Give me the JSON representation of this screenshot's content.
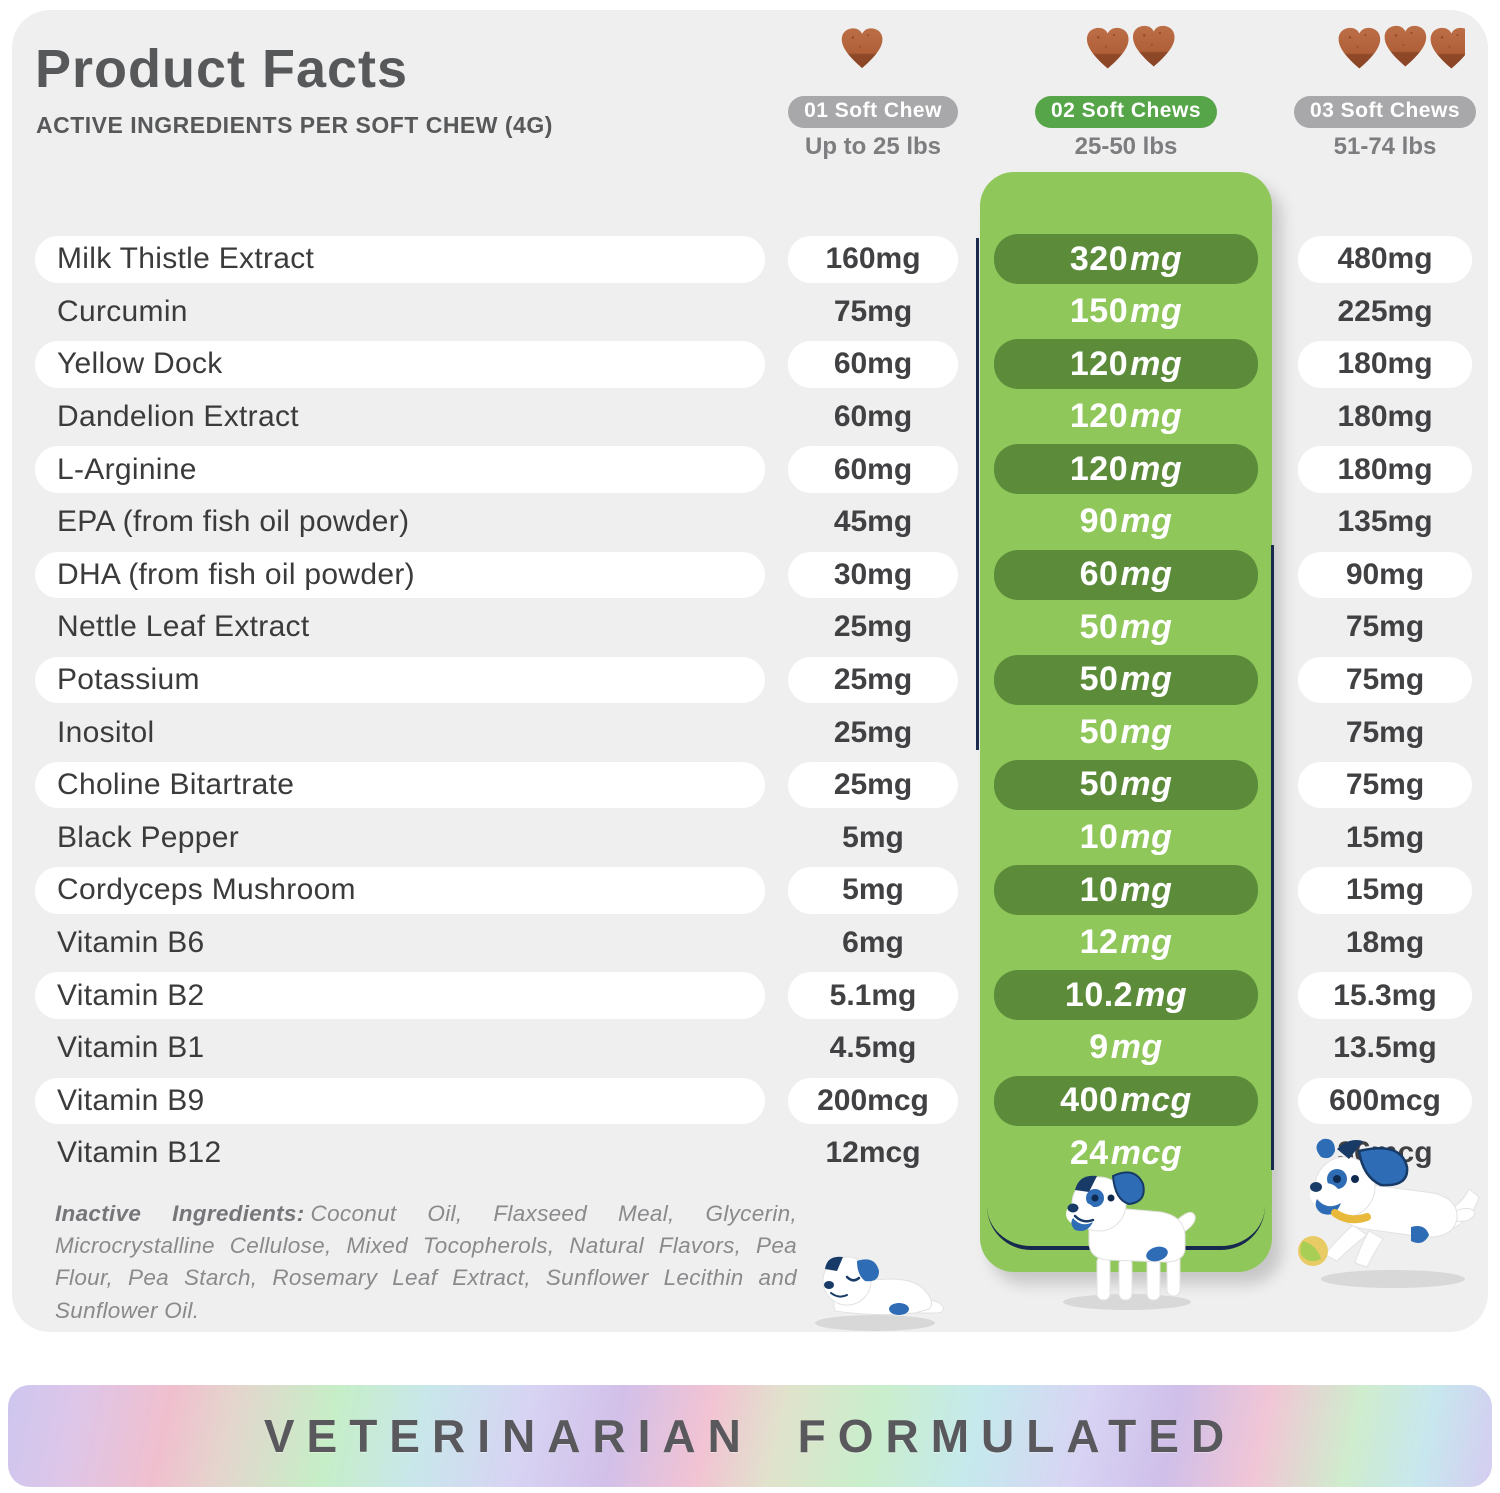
{
  "header": {
    "title": "Product Facts",
    "subtitle": "ACTIVE INGREDIENTS PER SOFT CHEW (4G)"
  },
  "dose_columns": [
    {
      "label": "01 Soft Chew",
      "weight": "Up to 25 lbs",
      "chew_count": 1,
      "pill_color": "#a8a8aa",
      "highlight": false
    },
    {
      "label": "02 Soft Chews",
      "weight": "25-50 lbs",
      "chew_count": 2,
      "pill_color": "#56a548",
      "highlight": true
    },
    {
      "label": "03 Soft Chews",
      "weight": "51-74 lbs",
      "chew_count": 3,
      "pill_color": "#a8a8aa",
      "highlight": false
    }
  ],
  "table": {
    "rows": [
      {
        "ingredient": "Milk Thistle Extract",
        "values": [
          "160mg",
          "320mg",
          "480mg"
        ]
      },
      {
        "ingredient": "Curcumin",
        "values": [
          "75mg",
          "150mg",
          "225mg"
        ]
      },
      {
        "ingredient": "Yellow Dock",
        "values": [
          "60mg",
          "120mg",
          "180mg"
        ]
      },
      {
        "ingredient": "Dandelion Extract",
        "values": [
          "60mg",
          "120mg",
          "180mg"
        ]
      },
      {
        "ingredient": "L-Arginine",
        "values": [
          "60mg",
          "120mg",
          "180mg"
        ]
      },
      {
        "ingredient": "EPA (from fish oil powder)",
        "values": [
          "45mg",
          "90mg",
          "135mg"
        ]
      },
      {
        "ingredient": "DHA (from fish oil powder)",
        "values": [
          "30mg",
          "60mg",
          "90mg"
        ]
      },
      {
        "ingredient": "Nettle Leaf Extract",
        "values": [
          "25mg",
          "50mg",
          "75mg"
        ]
      },
      {
        "ingredient": "Potassium",
        "values": [
          "25mg",
          "50mg",
          "75mg"
        ]
      },
      {
        "ingredient": "Inositol",
        "values": [
          "25mg",
          "50mg",
          "75mg"
        ]
      },
      {
        "ingredient": "Choline Bitartrate",
        "values": [
          "25mg",
          "50mg",
          "75mg"
        ]
      },
      {
        "ingredient": "Black Pepper",
        "values": [
          "5mg",
          "10mg",
          "15mg"
        ]
      },
      {
        "ingredient": "Cordyceps Mushroom",
        "values": [
          "5mg",
          "10mg",
          "15mg"
        ]
      },
      {
        "ingredient": "Vitamin B6",
        "values": [
          "6mg",
          "12mg",
          "18mg"
        ]
      },
      {
        "ingredient": "Vitamin B2",
        "values": [
          "5.1mg",
          "10.2mg",
          "15.3mg"
        ]
      },
      {
        "ingredient": "Vitamin B1",
        "values": [
          "4.5mg",
          "9mg",
          "13.5mg"
        ]
      },
      {
        "ingredient": "Vitamin B9",
        "values": [
          "200mcg",
          "400mcg",
          "600mcg"
        ]
      },
      {
        "ingredient": "Vitamin B12",
        "values": [
          "12mcg",
          "24mcg",
          "36mcg"
        ]
      }
    ]
  },
  "inactive": {
    "label": "Inactive Ingredients:",
    "text": "Coconut Oil, Flaxseed Meal, Glycerin, Microcrystalline Cellulose, Mixed Tocopherols, Natural Flavors, Pea Flour, Pea Starch, Rosemary Leaf Extract, Sunflower Lecithin and Sunflower Oil."
  },
  "footer": {
    "banner_text": "VETERINARIAN FORMULATED"
  },
  "colors": {
    "panel": "#efefef",
    "highlight_light_green": "#90c75b",
    "highlight_dark_green": "#5c8c3a",
    "accent_green_pill": "#56a548",
    "gray_pill": "#a8a8aa",
    "navy_outline": "#1b2b4d",
    "chew_brown": "#b5663e",
    "chew_brown_dark": "#8f4928"
  }
}
